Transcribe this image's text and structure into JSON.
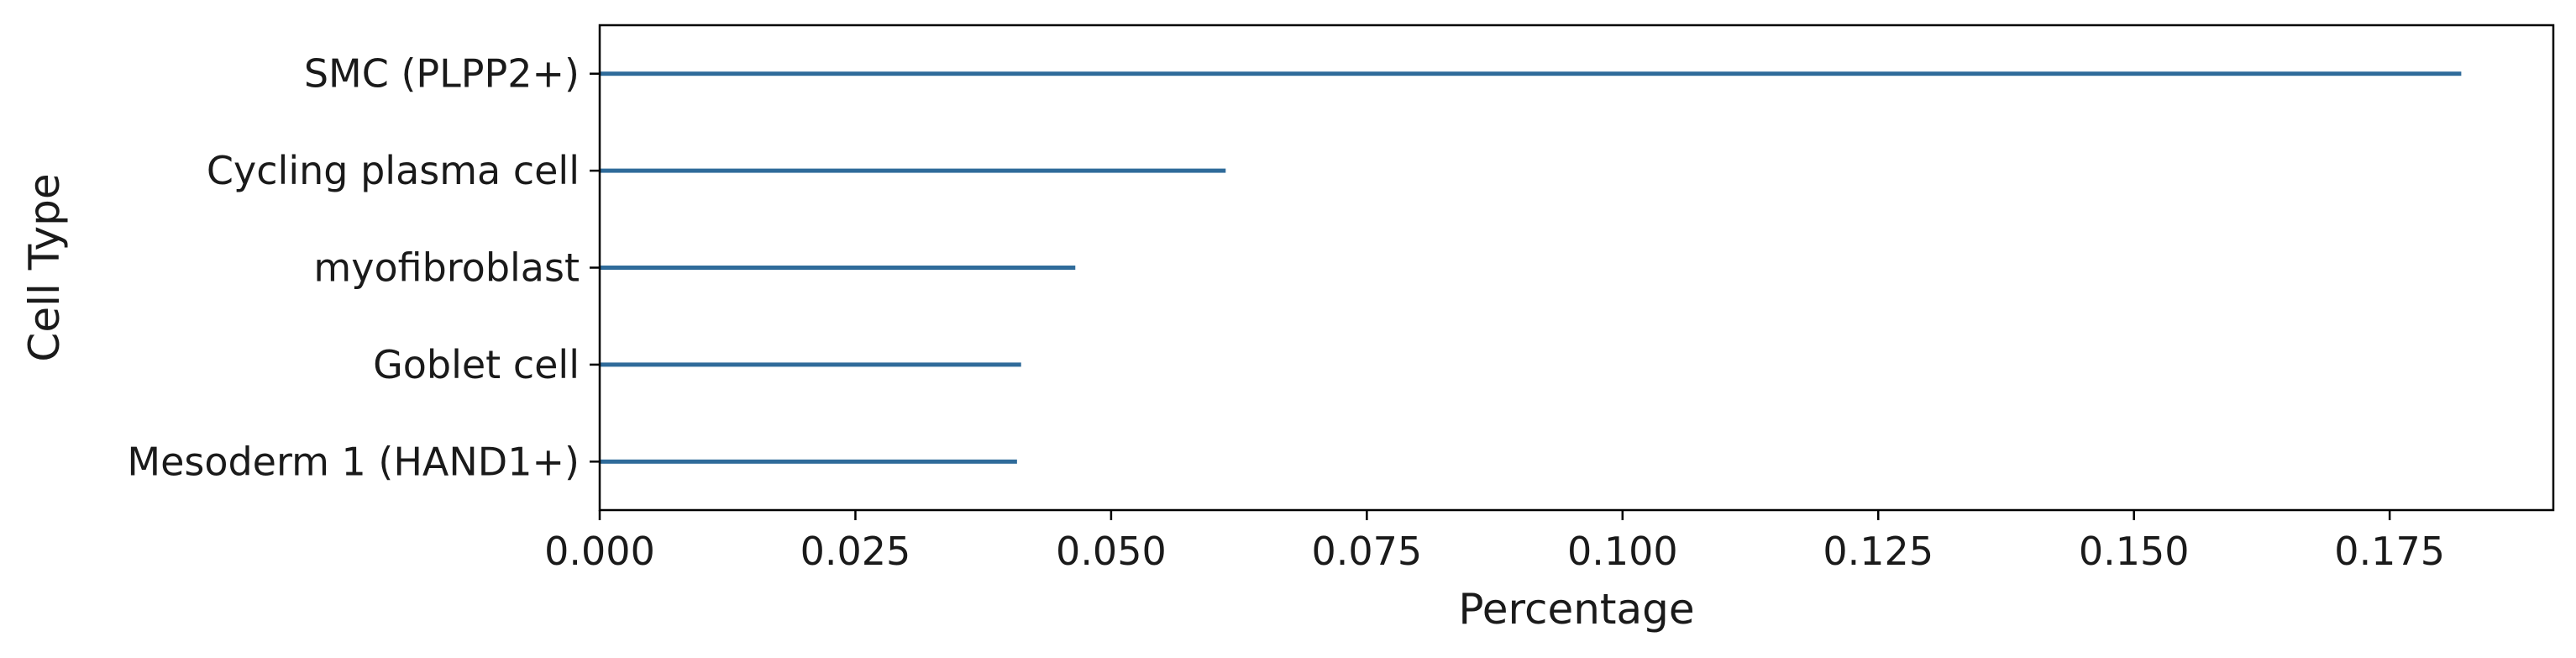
{
  "chart_data": {
    "type": "bar",
    "orientation": "horizontal",
    "categories": [
      "SMC (PLPP2+)",
      "Cycling plasma cell",
      "myofibroblast",
      "Goblet cell",
      "Mesoderm 1 (HAND1+)"
    ],
    "values": [
      0.182,
      0.0612,
      0.0465,
      0.0412,
      0.0408
    ],
    "xlabel": "Percentage",
    "ylabel": "Cell Type",
    "xlim": [
      0.0,
      0.191
    ],
    "xticks": [
      "0.000",
      "0.025",
      "0.050",
      "0.075",
      "0.100",
      "0.125",
      "0.150",
      "0.175"
    ],
    "grid": false,
    "bar_color": "#2f6b9a"
  }
}
